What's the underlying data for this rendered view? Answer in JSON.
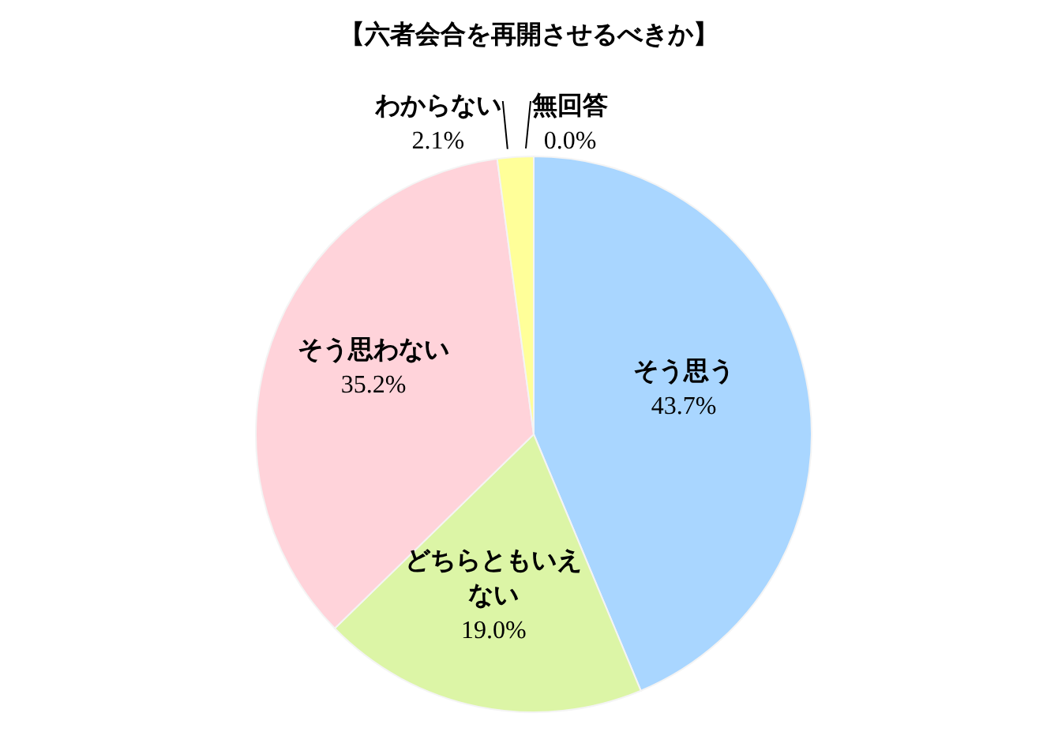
{
  "chart_data": {
    "type": "pie",
    "title": "【六者会合を再開させるべきか】",
    "categories": [
      "そう思う",
      "どちらともいえない",
      "そう思わない",
      "わからない",
      "無回答"
    ],
    "values": [
      43.7,
      19.0,
      35.2,
      2.1,
      0.0
    ],
    "value_labels": [
      "43.7%",
      "19.0%",
      "35.2%",
      "2.1%",
      "0.0%"
    ],
    "colors": [
      "#a9d6ff",
      "#dcf5a6",
      "#ffd3da",
      "#ffff99",
      "#c9c0e0"
    ],
    "legend": false
  }
}
